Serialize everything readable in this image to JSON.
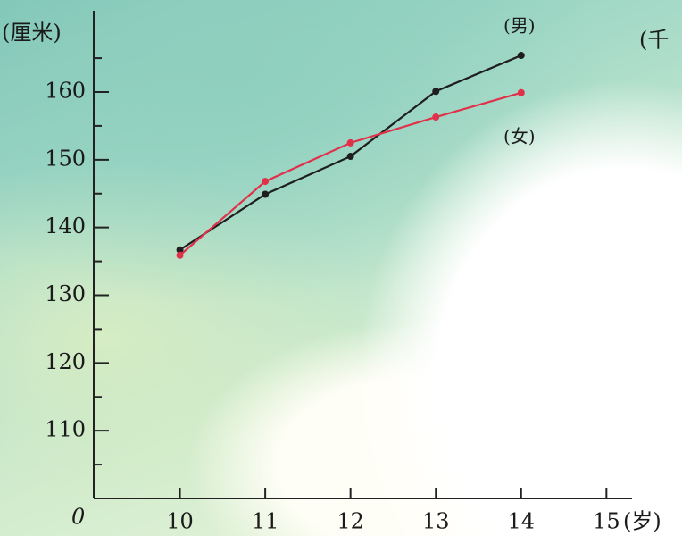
{
  "chart_data": {
    "type": "line",
    "y_label": "(厘米)",
    "x_label": "(岁)",
    "origin_label": "0",
    "annotation": "(千",
    "x": [
      10,
      11,
      12,
      13,
      14
    ],
    "xlim": [
      9,
      15.3
    ],
    "xticks": [
      10,
      11,
      12,
      13,
      14,
      15
    ],
    "ylim": [
      100,
      172
    ],
    "yticks": [
      110,
      120,
      130,
      140,
      150,
      160
    ],
    "minor_yticks": [
      105,
      115,
      125,
      135,
      145,
      155,
      165
    ],
    "series": [
      {
        "name": "(男)",
        "color": "#1e1e1e",
        "values": [
          136.7,
          144.9,
          150.5,
          160.1,
          165.4
        ]
      },
      {
        "name": "(女)",
        "color": "#e0304a",
        "values": [
          135.9,
          146.8,
          152.5,
          156.3,
          159.9
        ]
      }
    ]
  }
}
